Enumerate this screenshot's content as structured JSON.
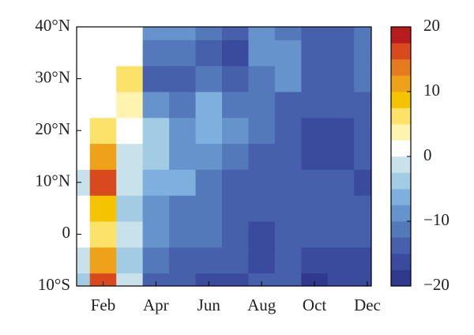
{
  "chart_data": {
    "type": "contour",
    "x": [
      1,
      2,
      3,
      4,
      5,
      6,
      7,
      8,
      9,
      10,
      11,
      12
    ],
    "y": [
      -10,
      -5,
      0,
      5,
      10,
      15,
      20,
      25,
      30,
      35,
      40
    ],
    "z": [
      [
        -3,
        17,
        -2,
        -14,
        -14,
        -16,
        -16,
        -15,
        -15,
        -18,
        -17,
        -17
      ],
      [
        -2,
        12,
        -3,
        -12,
        -13,
        -14,
        -15,
        -16,
        -14,
        -17,
        -16,
        -16
      ],
      [
        0,
        6,
        -2,
        -10,
        -12,
        -12,
        -14,
        -17,
        -14,
        -15,
        -15,
        -15
      ],
      [
        1,
        8,
        -3,
        -8,
        -11,
        -12,
        -13,
        -15,
        -13,
        -13,
        -14,
        -15
      ],
      [
        -2,
        15,
        -1,
        -7,
        -6,
        -12,
        -13,
        -13,
        -14,
        -14,
        -15,
        -16
      ],
      [
        1,
        10,
        -1,
        -5,
        -9,
        -8,
        -12,
        -13,
        -14,
        -16,
        -17,
        -15
      ],
      [
        2,
        6,
        1,
        -4,
        -10,
        -6,
        -10,
        -12,
        -15,
        -16,
        -16,
        -14
      ],
      [
        2,
        2,
        4,
        -8,
        -11,
        -7,
        -12,
        -12,
        -13,
        -14,
        -14,
        -13
      ],
      [
        2,
        1,
        6,
        -13,
        -13,
        -11,
        -14,
        -12,
        -9,
        -13,
        -13,
        -12
      ],
      [
        2,
        1,
        1,
        -12,
        -12,
        -13,
        -16,
        -10,
        -9,
        -13,
        -13,
        -12
      ],
      [
        1,
        1,
        1,
        -9,
        -10,
        -12,
        -14,
        -9,
        -12,
        -13,
        -13,
        -12
      ]
    ],
    "xlim": [
      1,
      12.15
    ],
    "xticks": [
      {
        "value": 2,
        "label": "Feb"
      },
      {
        "value": 4,
        "label": "Apr"
      },
      {
        "value": 6,
        "label": "Jun"
      },
      {
        "value": 8,
        "label": "Aug"
      },
      {
        "value": 10,
        "label": "Oct"
      },
      {
        "value": 12,
        "label": "Dec"
      }
    ],
    "ylim": [
      -10,
      40
    ],
    "yticks": [
      {
        "value": -10,
        "label": "10°S"
      },
      0,
      {
        "value": 10,
        "label": "10°N"
      },
      {
        "value": 20,
        "label": "20°N"
      },
      {
        "value": 30,
        "label": "30°N"
      },
      {
        "value": 40,
        "label": "40°N"
      }
    ],
    "levels": [
      -20,
      -17.5,
      -15,
      -12.5,
      -10,
      -7.5,
      -5,
      -2.5,
      0,
      2.5,
      5,
      7.5,
      10,
      12.5,
      15,
      17.5,
      20
    ],
    "colors": [
      "#2f3a8f",
      "#3a4b9d",
      "#4660ac",
      "#5379bb",
      "#6693cc",
      "#7fb0dd",
      "#a2cbe4",
      "#c8e2ec",
      "#ffffff",
      "#fff3b0",
      "#fde26a",
      "#f5c400",
      "#eea21a",
      "#e57a1e",
      "#d84a1e",
      "#b81c1c"
    ],
    "zticks": [
      {
        "value": -20,
        "label": "−20"
      },
      {
        "value": -10,
        "label": "−10"
      },
      0,
      10,
      20
    ]
  }
}
